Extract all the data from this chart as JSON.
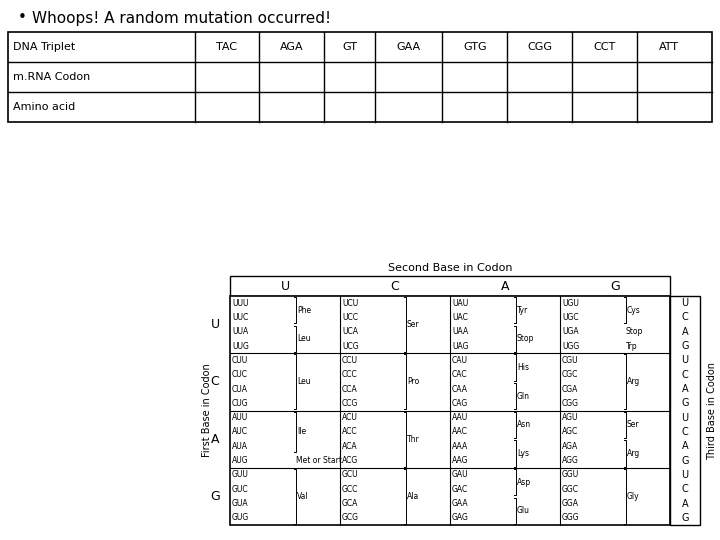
{
  "bullet_text": "Whoops! A random mutation occurred!",
  "table_headers": [
    "DNA Triplet",
    "TAC",
    "AGA",
    "GT",
    "GAA",
    "GTG",
    "CGG",
    "CCT",
    "ATT"
  ],
  "table_rows": [
    [
      "m.RNA Codon",
      "",
      "",
      "",
      "",
      "",
      "",
      "",
      ""
    ],
    [
      "Amino acid",
      "",
      "",
      "",
      "",
      "",
      "",
      "",
      ""
    ]
  ],
  "codon_title": "Second Base in Codon",
  "codon_second_bases": [
    "U",
    "C",
    "A",
    "G"
  ],
  "codon_first_bases": [
    "U",
    "C",
    "A",
    "G"
  ],
  "codon_third_label": "Third Base in Codon",
  "codon_first_label": "First Base in Codon",
  "amino_acids": {
    "UUU": "Phe",
    "UUC": "Phe",
    "UUA": "Leu",
    "UUG": "Leu",
    "UCU": "Ser",
    "UCC": "Ser",
    "UCA": "Ser",
    "UCG": "Ser",
    "UAU": "Tyr",
    "UAC": "Tyr",
    "UAA": "Stop",
    "UAG": "Stop",
    "UGU": "Cys",
    "UGC": "Cys",
    "UGA": "Stop",
    "UGG": "Trp",
    "CUU": "Leu",
    "CUC": "Leu",
    "CUA": "Leu",
    "CUG": "Leu",
    "CCU": "Pro",
    "CCC": "Pro",
    "CCA": "Pro",
    "CCG": "Pro",
    "CAU": "His",
    "CAC": "His",
    "CAA": "Gln",
    "CAG": "Gln",
    "CGU": "Arg",
    "CGC": "Arg",
    "CGA": "Arg",
    "CGG": "Arg",
    "AUU": "Ile",
    "AUC": "Ile",
    "AUA": "Ile",
    "AUG": "Met or Start",
    "ACU": "Thr",
    "ACC": "Thr",
    "ACA": "Thr",
    "ACG": "Thr",
    "AAU": "Asn",
    "AAC": "Asn",
    "AAA": "Lys",
    "AAG": "Lys",
    "AGU": "Ser",
    "AGC": "Ser",
    "AGA": "Arg",
    "AGG": "Arg",
    "GUU": "Val",
    "GUC": "Val",
    "GUA": "Val",
    "GUG": "Val",
    "GCU": "Ala",
    "GCC": "Ala",
    "GCA": "Ala",
    "GCG": "Ala",
    "GAU": "Asp",
    "GAC": "Asp",
    "GAA": "Glu",
    "GAG": "Glu",
    "GGU": "Gly",
    "GGC": "Gly",
    "GGA": "Gly",
    "GGG": "Gly"
  },
  "bg_color": "#ffffff",
  "text_color": "#000000"
}
